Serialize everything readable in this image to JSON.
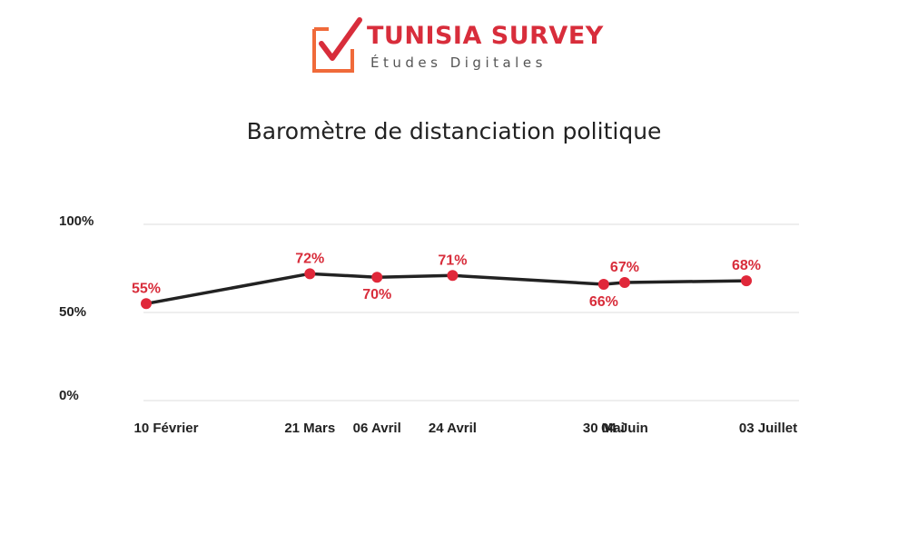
{
  "brand": {
    "name": "TUNISIA SURVEY",
    "tagline": "Études Digitales",
    "color": "#d82d3b",
    "mark_color": "#f06a3a"
  },
  "chart_data": {
    "type": "line",
    "title": "Baromètre de distanciation politique",
    "categories": [
      "10 Février",
      "21 Mars",
      "06 Avril",
      "24 Avril",
      "30 Mai",
      "04 Juin",
      "03 Juillet"
    ],
    "x_dates": [
      "02-10",
      "03-21",
      "04-06",
      "04-24",
      "05-30",
      "06-04",
      "07-03"
    ],
    "series": [
      {
        "values": [
          55,
          72,
          70,
          71,
          66,
          67,
          68
        ],
        "labels": [
          "55%",
          "72%",
          "70%",
          "71%",
          "66%",
          "67%",
          "68%"
        ],
        "line_color": "#222222",
        "marker_color": "#e0283a"
      }
    ],
    "y_ticks": [
      {
        "value": 0,
        "label": "0%"
      },
      {
        "value": 50,
        "label": "50%"
      },
      {
        "value": 100,
        "label": "100%"
      }
    ],
    "ylim": [
      0,
      100
    ],
    "grid": true,
    "legend": "none"
  }
}
